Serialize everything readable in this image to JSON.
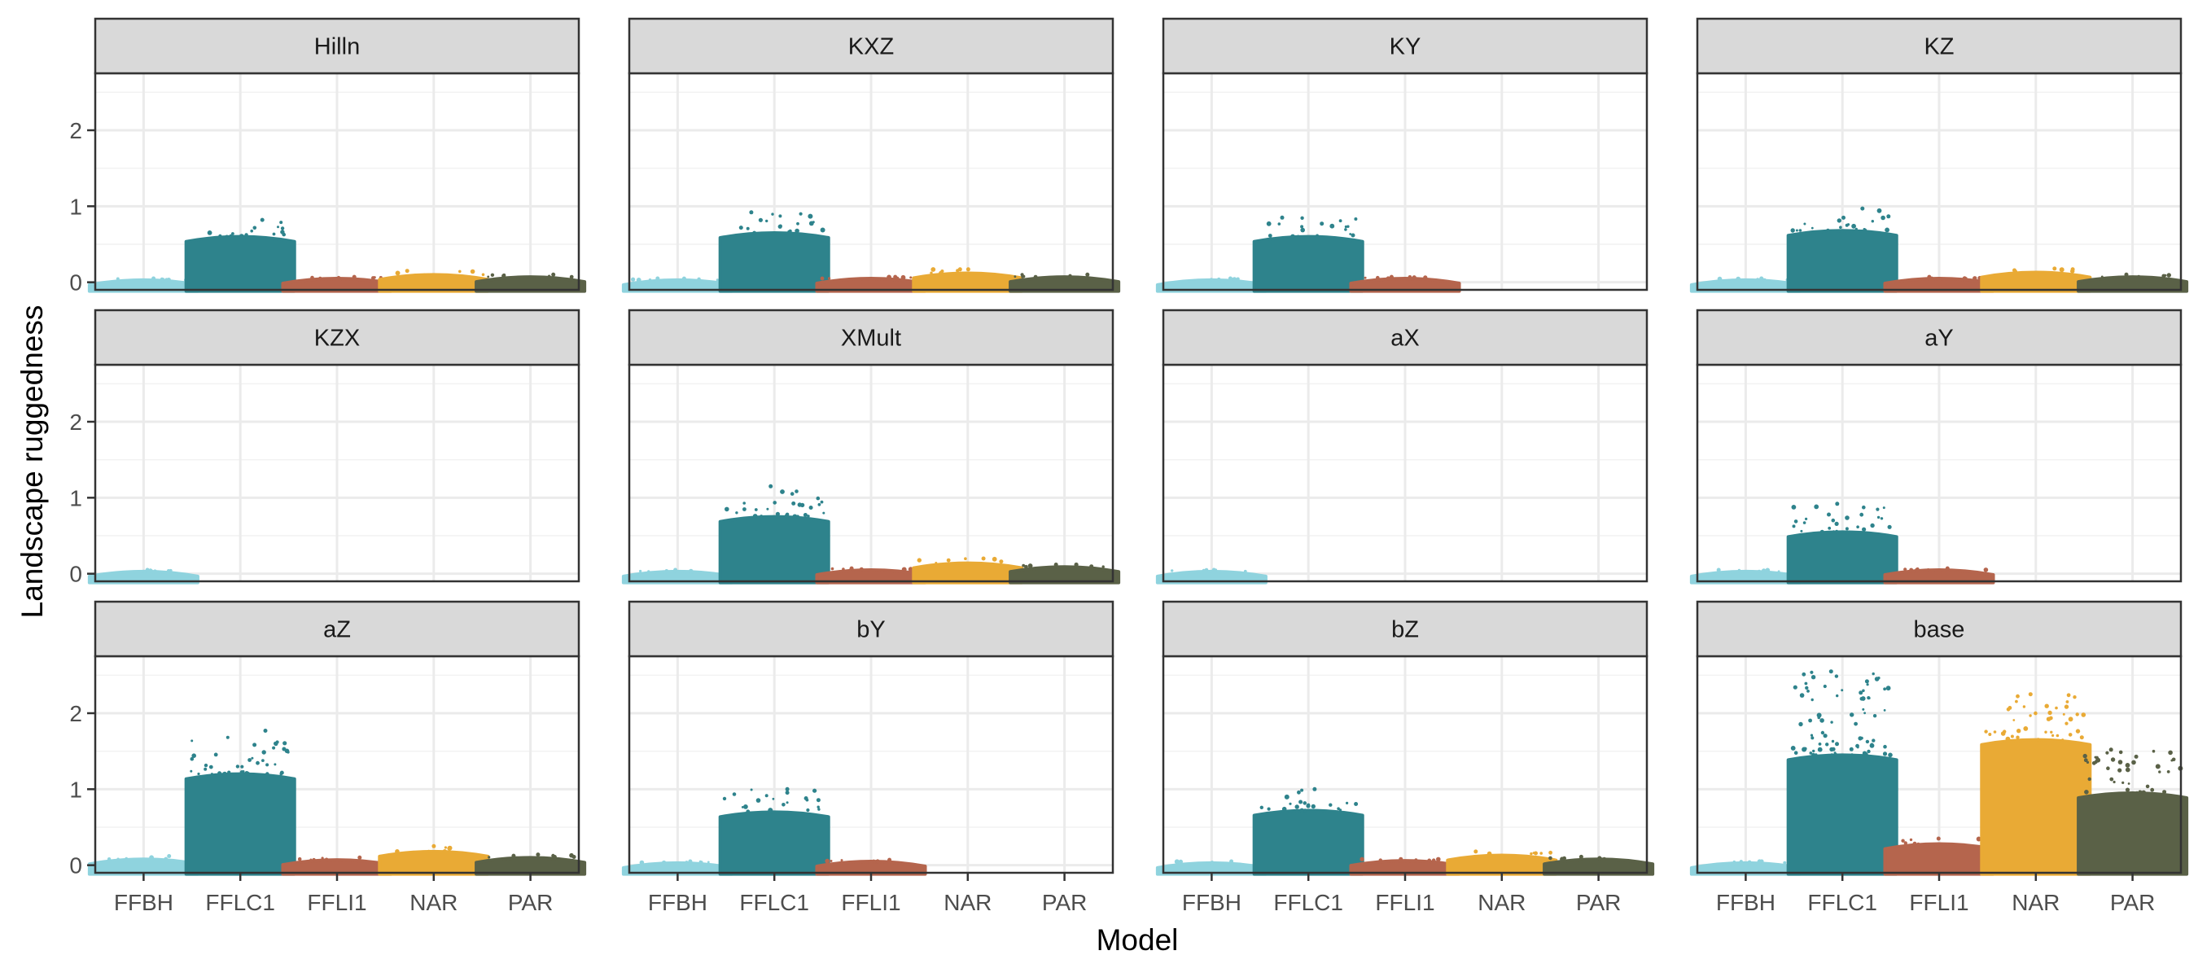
{
  "chart_data": {
    "type": "scatter",
    "xlabel": "Model",
    "ylabel": "Landscape ruggedness",
    "categories": [
      "FFBH",
      "FFLC1",
      "FFLI1",
      "NAR",
      "PAR"
    ],
    "y_ticks": [
      "0",
      "1",
      "2"
    ],
    "ylim": [
      -0.1,
      2.75
    ],
    "grid": true,
    "colors": {
      "FFBH": "#8fd3de",
      "FFLC1": "#2e838c",
      "FFLI1": "#b5654d",
      "NAR": "#e9aa35",
      "PAR": "#5a6147"
    },
    "facets": [
      {
        "name": "Hilln",
        "series": [
          {
            "category": "FFBH",
            "body": 0.03,
            "max": 0.05
          },
          {
            "category": "FFLC1",
            "body": 0.6,
            "max": 0.82
          },
          {
            "category": "FFLI1",
            "body": 0.05,
            "max": 0.07
          },
          {
            "category": "NAR",
            "body": 0.1,
            "max": 0.15
          },
          {
            "category": "PAR",
            "body": 0.07,
            "max": 0.1
          }
        ]
      },
      {
        "name": "KXZ",
        "series": [
          {
            "category": "FFBH",
            "body": 0.03,
            "max": 0.05
          },
          {
            "category": "FFLC1",
            "body": 0.65,
            "max": 0.92
          },
          {
            "category": "FFLI1",
            "body": 0.05,
            "max": 0.07
          },
          {
            "category": "NAR",
            "body": 0.12,
            "max": 0.17
          },
          {
            "category": "PAR",
            "body": 0.07,
            "max": 0.1
          }
        ]
      },
      {
        "name": "KY",
        "series": [
          {
            "category": "FFBH",
            "body": 0.03,
            "max": 0.05
          },
          {
            "category": "FFLC1",
            "body": 0.6,
            "max": 0.85
          },
          {
            "category": "FFLI1",
            "body": 0.05,
            "max": 0.07
          }
        ]
      },
      {
        "name": "KZ",
        "series": [
          {
            "category": "FFBH",
            "body": 0.03,
            "max": 0.05
          },
          {
            "category": "FFLC1",
            "body": 0.68,
            "max": 0.97
          },
          {
            "category": "FFLI1",
            "body": 0.05,
            "max": 0.07
          },
          {
            "category": "NAR",
            "body": 0.13,
            "max": 0.18
          },
          {
            "category": "PAR",
            "body": 0.07,
            "max": 0.1
          }
        ]
      },
      {
        "name": "KZX",
        "series": [
          {
            "category": "FFBH",
            "body": 0.03,
            "max": 0.05
          }
        ]
      },
      {
        "name": "XMult",
        "series": [
          {
            "category": "FFBH",
            "body": 0.03,
            "max": 0.05
          },
          {
            "category": "FFLC1",
            "body": 0.75,
            "max": 1.15
          },
          {
            "category": "FFLI1",
            "body": 0.05,
            "max": 0.07
          },
          {
            "category": "NAR",
            "body": 0.14,
            "max": 0.2
          },
          {
            "category": "PAR",
            "body": 0.09,
            "max": 0.12
          }
        ]
      },
      {
        "name": "aX",
        "series": [
          {
            "category": "FFBH",
            "body": 0.03,
            "max": 0.05
          }
        ]
      },
      {
        "name": "aY",
        "series": [
          {
            "category": "FFBH",
            "body": 0.03,
            "max": 0.05
          },
          {
            "category": "FFLC1",
            "body": 0.55,
            "max": 0.92
          },
          {
            "category": "FFLI1",
            "body": 0.05,
            "max": 0.07
          }
        ]
      },
      {
        "name": "aZ",
        "series": [
          {
            "category": "FFBH",
            "body": 0.08,
            "max": 0.12
          },
          {
            "category": "FFLC1",
            "body": 1.2,
            "max": 1.77
          },
          {
            "category": "FFLI1",
            "body": 0.07,
            "max": 0.1
          },
          {
            "category": "NAR",
            "body": 0.18,
            "max": 0.25
          },
          {
            "category": "PAR",
            "body": 0.1,
            "max": 0.14
          }
        ]
      },
      {
        "name": "bY",
        "series": [
          {
            "category": "FFBH",
            "body": 0.03,
            "max": 0.05
          },
          {
            "category": "FFLC1",
            "body": 0.7,
            "max": 1.0
          },
          {
            "category": "FFLI1",
            "body": 0.05,
            "max": 0.07
          }
        ]
      },
      {
        "name": "bZ",
        "series": [
          {
            "category": "FFBH",
            "body": 0.03,
            "max": 0.05
          },
          {
            "category": "FFLC1",
            "body": 0.72,
            "max": 1.0
          },
          {
            "category": "FFLI1",
            "body": 0.06,
            "max": 0.08
          },
          {
            "category": "NAR",
            "body": 0.13,
            "max": 0.18
          },
          {
            "category": "PAR",
            "body": 0.08,
            "max": 0.11
          }
        ]
      },
      {
        "name": "base",
        "series": [
          {
            "category": "FFBH",
            "body": 0.03,
            "max": 0.05
          },
          {
            "category": "FFLC1",
            "body": 1.45,
            "max": 2.55
          },
          {
            "category": "FFLI1",
            "body": 0.28,
            "max": 0.35
          },
          {
            "category": "NAR",
            "body": 1.65,
            "max": 2.25
          },
          {
            "category": "PAR",
            "body": 0.95,
            "max": 1.52
          }
        ]
      }
    ]
  }
}
